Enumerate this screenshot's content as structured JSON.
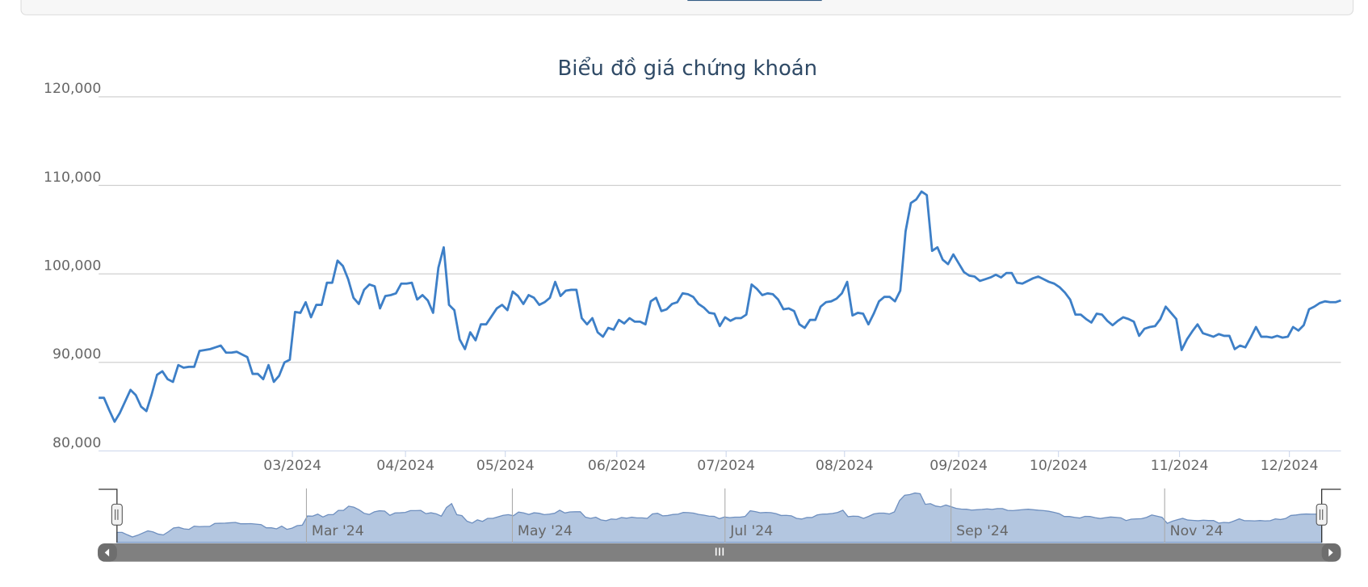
{
  "chart_data": {
    "type": "line",
    "title": "Biểu đồ giá chứng khoán",
    "series": [
      {
        "color": "#3d7fc7",
        "values": [
          86000,
          86000,
          84600,
          83300,
          84300,
          85600,
          86900,
          86300,
          85000,
          84500,
          86400,
          88600,
          89000,
          88100,
          87800,
          89700,
          89400,
          89500,
          89500,
          91300,
          91400,
          91500,
          91700,
          91900,
          91100,
          91100,
          91200,
          90900,
          90600,
          88700,
          88700,
          88100,
          89700,
          87800,
          88500,
          90000,
          90300,
          95700,
          95600,
          96800,
          95100,
          96500,
          96500,
          99000,
          99000,
          101500,
          100900,
          99400,
          97300,
          96600,
          98200,
          98800,
          98600,
          96100,
          97500,
          97600,
          97800,
          98900,
          98900,
          99000,
          97100,
          97600,
          97000,
          95600,
          100700,
          103000,
          96500,
          95900,
          92600,
          91500,
          93400,
          92500,
          94300,
          94300,
          95200,
          96100,
          96500,
          95900,
          98000,
          97500,
          96600,
          97600,
          97300,
          96500,
          96800,
          97300,
          99100,
          97500,
          98100,
          98200,
          98200,
          95000,
          94300,
          95000,
          93400,
          92900,
          93900,
          93700,
          94800,
          94400,
          95000,
          94600,
          94600,
          94300,
          96900,
          97300,
          95800,
          96000,
          96600,
          96800,
          97800,
          97700,
          97400,
          96600,
          96200,
          95600,
          95500,
          94100,
          95100,
          94700,
          95000,
          95000,
          95400,
          98800,
          98300,
          97600,
          97800,
          97700,
          97100,
          96000,
          96100,
          95800,
          94300,
          93900,
          94800,
          94800,
          96300,
          96800,
          96900,
          97200,
          97800,
          99100,
          95300,
          95600,
          95500,
          94300,
          95500,
          96900,
          97400,
          97400,
          96900,
          98100,
          104800,
          108000,
          108400,
          109300,
          108900,
          102600,
          103000,
          101600,
          101100,
          102200,
          101200,
          100200,
          99800,
          99700,
          99200,
          99400,
          99600,
          99900,
          99600,
          100100,
          100100,
          99000,
          98900,
          99200,
          99500,
          99700,
          99400,
          99100,
          98900,
          98500,
          97900,
          97100,
          95400,
          95400,
          94900,
          94500,
          95500,
          95400,
          94700,
          94200,
          94700,
          95100,
          94900,
          94600,
          93000,
          93800,
          94000,
          94100,
          94900,
          96300,
          95600,
          94900,
          91400,
          92600,
          93500,
          94300,
          93300,
          93100,
          92900,
          93200,
          93000,
          93000,
          91500,
          91900,
          91700,
          92800,
          94000,
          92900,
          92900,
          92800,
          93000,
          92800,
          92900,
          94000,
          93600,
          94200,
          96000,
          96300,
          96700,
          96900,
          96800,
          96800,
          97000
        ]
      }
    ],
    "xlim": [
      0,
      234
    ],
    "xticks": [
      {
        "value": 36.5,
        "label": "03/2024"
      },
      {
        "value": 57.8,
        "label": "04/2024"
      },
      {
        "value": 76.6,
        "label": "05/2024"
      },
      {
        "value": 97.6,
        "label": "06/2024"
      },
      {
        "value": 118.2,
        "label": "07/2024"
      },
      {
        "value": 140.5,
        "label": "08/2024"
      },
      {
        "value": 162.0,
        "label": "09/2024"
      },
      {
        "value": 180.8,
        "label": "10/2024"
      },
      {
        "value": 203.6,
        "label": "11/2024"
      },
      {
        "value": 224.3,
        "label": "12/2024"
      }
    ],
    "ylim": [
      80000,
      120000
    ],
    "yticks": [
      {
        "value": 80000,
        "label": "80,000"
      },
      {
        "value": 90000,
        "label": "90,000"
      },
      {
        "value": 100000,
        "label": "100,000"
      },
      {
        "value": 110000,
        "label": "110,000"
      },
      {
        "value": 120000,
        "label": "120,000"
      }
    ],
    "grid": true,
    "navigator": {
      "ylim": [
        80000,
        112000
      ],
      "xticks": [
        {
          "value": 36.8,
          "label": "Mar '24"
        },
        {
          "value": 76.8,
          "label": "May '24"
        },
        {
          "value": 118.1,
          "label": "Jul '24"
        },
        {
          "value": 162.0,
          "label": "Sep '24"
        },
        {
          "value": 203.5,
          "label": "Nov '24"
        }
      ]
    }
  }
}
